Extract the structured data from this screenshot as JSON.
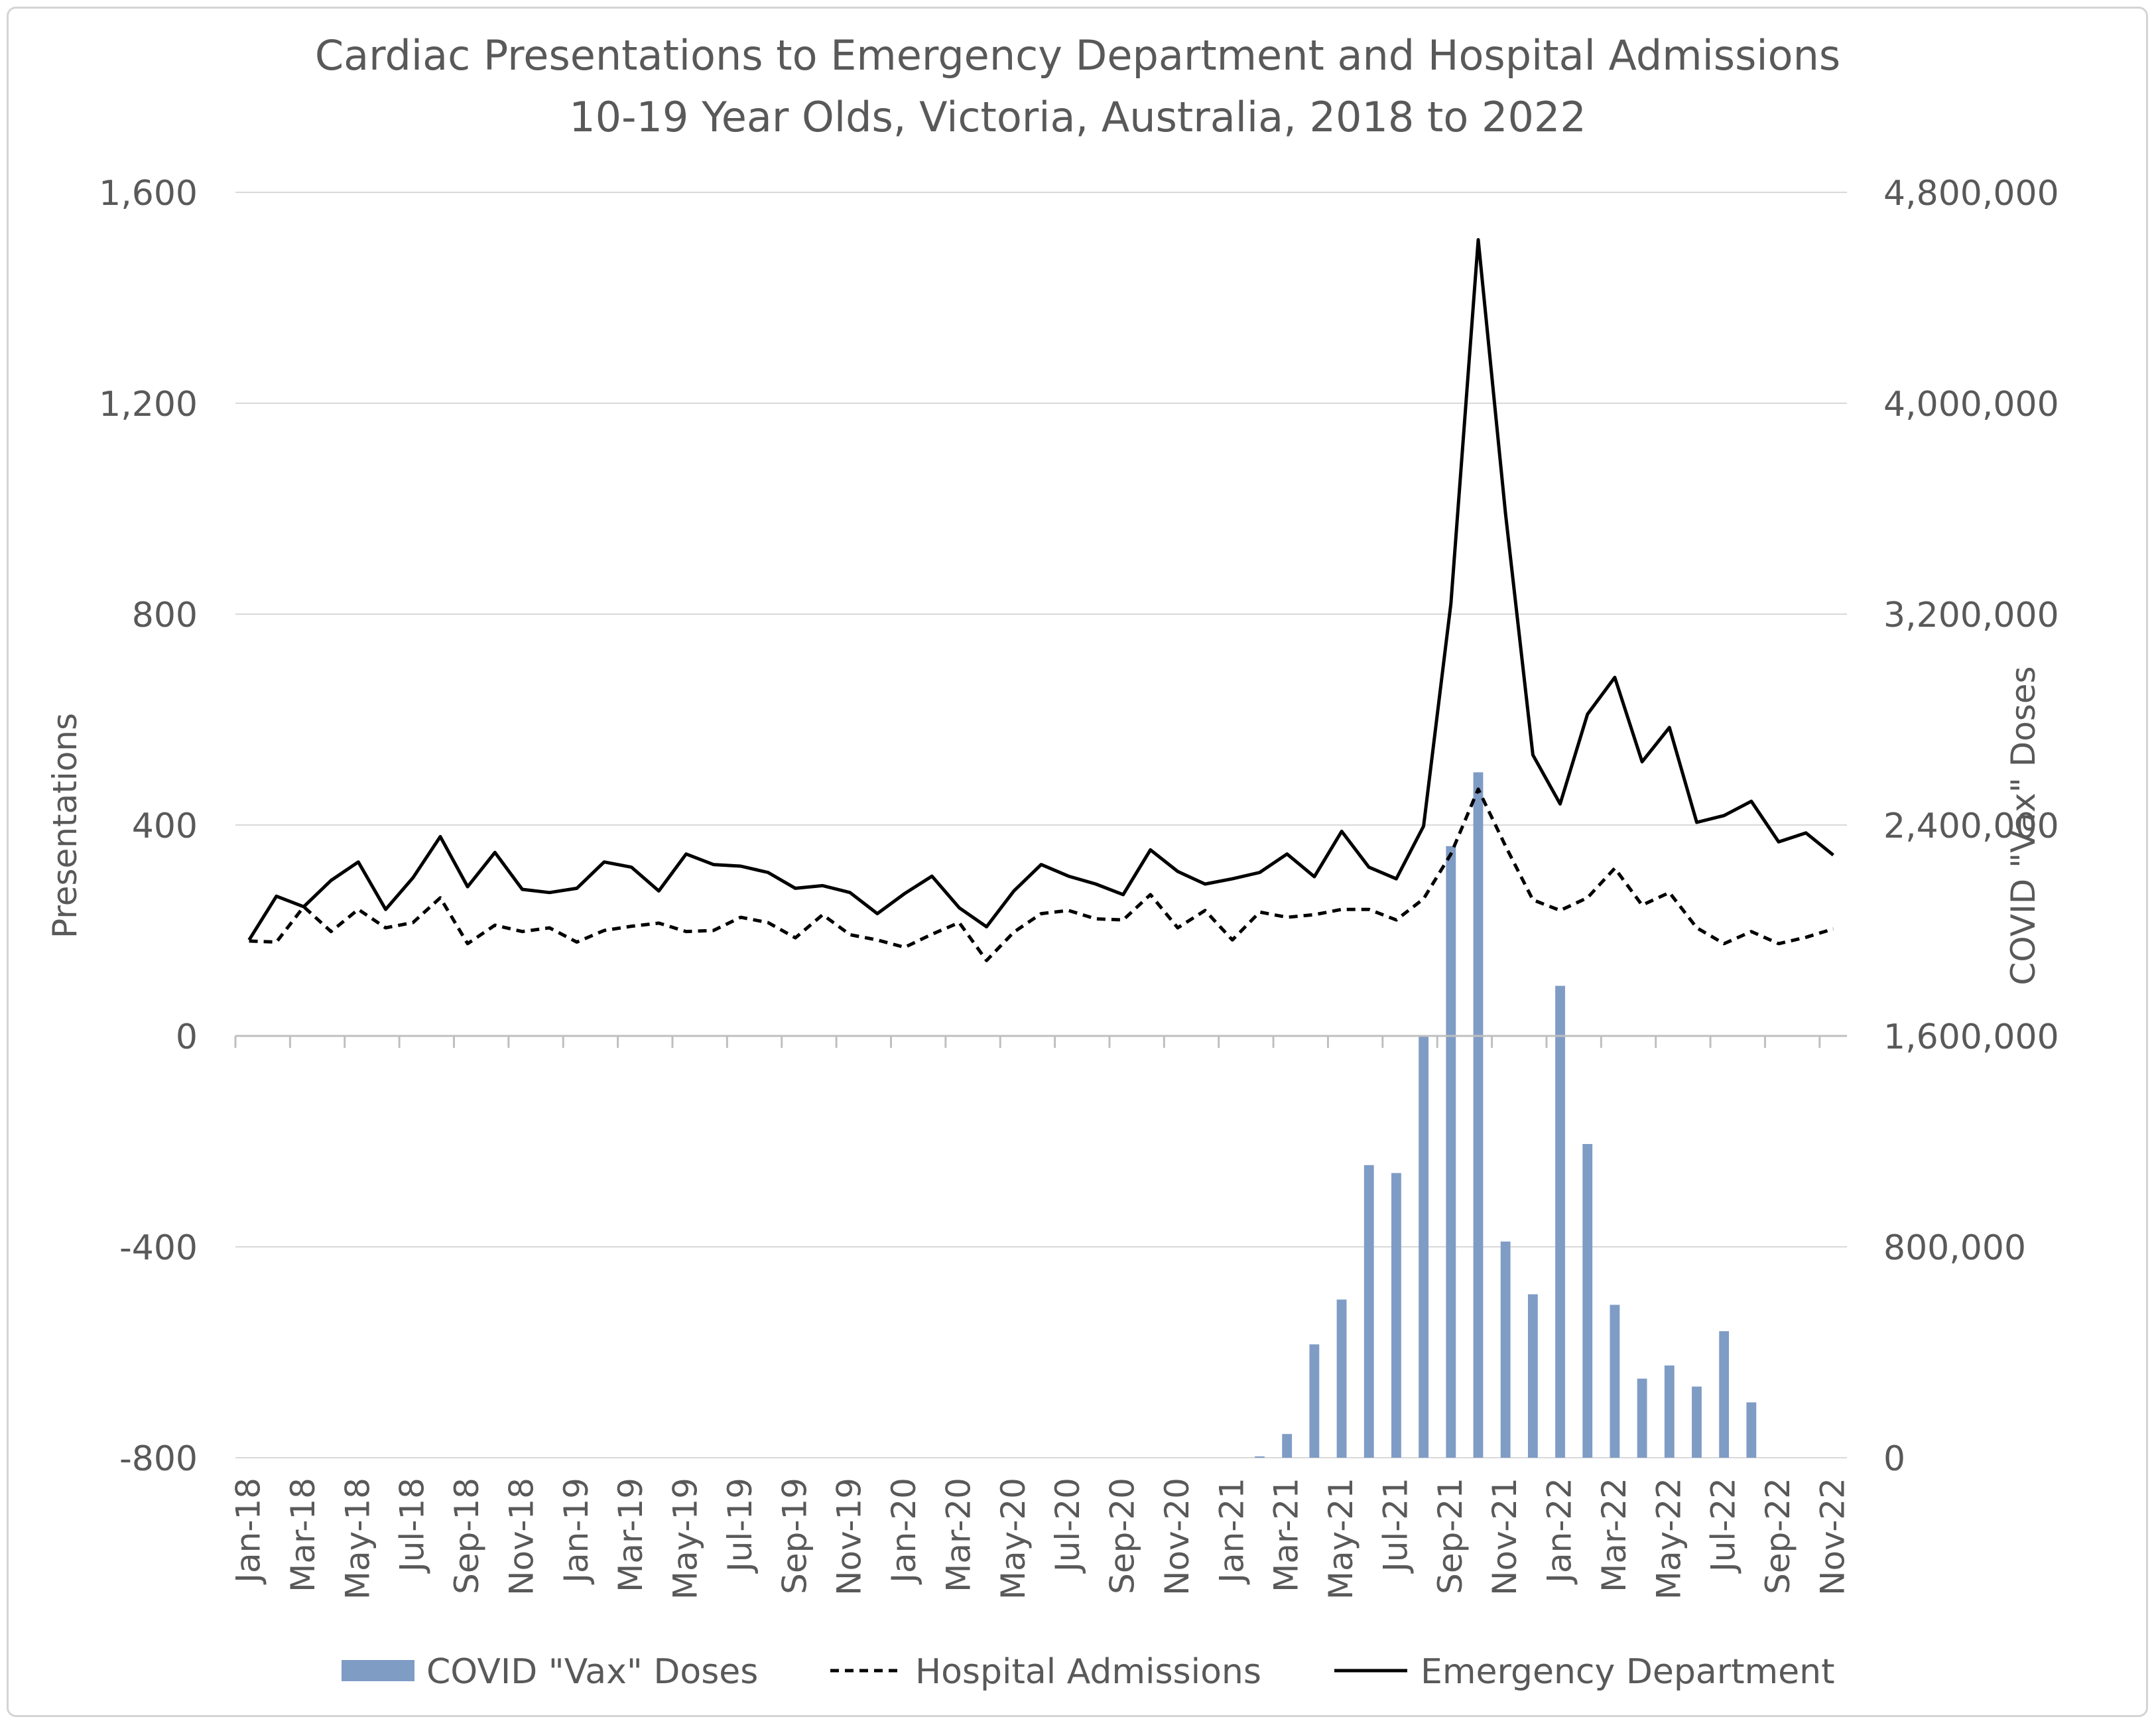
{
  "chart_data": {
    "type": "bar+line",
    "title": "Cardiac Presentations to Emergency Department and Hospital Admissions",
    "subtitle": "10-19 Year Olds, Victoria, Australia, 2018 to 2022",
    "ylabel": "Presentations",
    "y2label": "COVID \"Vax\" Doses",
    "ylim": [
      -800,
      1600
    ],
    "y2lim": [
      0,
      4800000
    ],
    "yticks": [
      "1,600",
      "1,200",
      "800",
      "400",
      "0",
      "-400",
      "-800"
    ],
    "y2ticks": [
      "4,800,000",
      "4,000,000",
      "3,200,000",
      "2,400,000",
      "1,600,000",
      "800,000",
      "0"
    ],
    "grid": true,
    "legend_position": "bottom",
    "colors": {
      "bars": "#7f9cc5",
      "lines": "#000000",
      "grid": "#d9d9d9",
      "text": "#595959"
    },
    "x_labels": [
      "Jan-18",
      "Mar-18",
      "May-18",
      "Jul-18",
      "Sep-18",
      "Nov-18",
      "Jan-19",
      "Mar-19",
      "May-19",
      "Jul-19",
      "Sep-19",
      "Nov-19",
      "Jan-20",
      "Mar-20",
      "May-20",
      "Jul-20",
      "Sep-20",
      "Nov-20",
      "Jan-21",
      "Mar-21",
      "May-21",
      "Jul-21",
      "Sep-21",
      "Nov-21",
      "Jan-22",
      "Mar-22",
      "May-22",
      "Jul-22",
      "Sep-22",
      "Nov-22"
    ],
    "months": [
      "Jan-18",
      "Feb-18",
      "Mar-18",
      "Apr-18",
      "May-18",
      "Jun-18",
      "Jul-18",
      "Aug-18",
      "Sep-18",
      "Oct-18",
      "Nov-18",
      "Dec-18",
      "Jan-19",
      "Feb-19",
      "Mar-19",
      "Apr-19",
      "May-19",
      "Jun-19",
      "Jul-19",
      "Aug-19",
      "Sep-19",
      "Oct-19",
      "Nov-19",
      "Dec-19",
      "Jan-20",
      "Feb-20",
      "Mar-20",
      "Apr-20",
      "May-20",
      "Jun-20",
      "Jul-20",
      "Aug-20",
      "Sep-20",
      "Oct-20",
      "Nov-20",
      "Dec-20",
      "Jan-21",
      "Feb-21",
      "Mar-21",
      "Apr-21",
      "May-21",
      "Jun-21",
      "Jul-21",
      "Aug-21",
      "Sep-21",
      "Oct-21",
      "Nov-21",
      "Dec-21",
      "Jan-22",
      "Feb-22",
      "Mar-22",
      "Apr-22",
      "May-22",
      "Jun-22",
      "Jul-22",
      "Aug-22",
      "Sep-22",
      "Oct-22",
      "Nov-22"
    ],
    "series": [
      {
        "name": "COVID \"Vax\" Doses",
        "type": "bar",
        "axis": "right",
        "style": "solid-bar",
        "values": [
          0,
          0,
          0,
          0,
          0,
          0,
          0,
          0,
          0,
          0,
          0,
          0,
          0,
          0,
          0,
          0,
          0,
          0,
          0,
          0,
          0,
          0,
          0,
          0,
          0,
          0,
          0,
          0,
          0,
          0,
          0,
          0,
          0,
          0,
          0,
          0,
          0,
          5000,
          90000,
          430000,
          600000,
          1110000,
          1080000,
          1600000,
          2320000,
          2600000,
          820000,
          620000,
          1790000,
          1190000,
          580000,
          300000,
          350000,
          270000,
          480000,
          210000,
          0,
          0,
          0
        ]
      },
      {
        "name": "Hospital Admissions",
        "type": "line",
        "axis": "left",
        "style": "dashed",
        "values": [
          180,
          178,
          245,
          198,
          240,
          205,
          215,
          262,
          175,
          210,
          198,
          205,
          178,
          200,
          208,
          214,
          198,
          200,
          225,
          215,
          186,
          230,
          192,
          182,
          168,
          193,
          215,
          143,
          197,
          232,
          238,
          222,
          220,
          268,
          205,
          238,
          182,
          235,
          225,
          230,
          240,
          240,
          220,
          260,
          345,
          468,
          360,
          258,
          238,
          262,
          318,
          248,
          272,
          205,
          175,
          198,
          175,
          187,
          203
        ]
      },
      {
        "name": "Emergency Department",
        "type": "line",
        "axis": "left",
        "style": "solid",
        "values": [
          182,
          265,
          245,
          295,
          330,
          240,
          300,
          378,
          283,
          348,
          278,
          272,
          280,
          330,
          320,
          275,
          345,
          325,
          322,
          310,
          280,
          285,
          272,
          232,
          270,
          303,
          243,
          207,
          275,
          325,
          303,
          288,
          268,
          353,
          312,
          288,
          298,
          310,
          345,
          302,
          388,
          320,
          298,
          398,
          820,
          1510,
          990,
          533,
          440,
          610,
          680,
          520,
          585,
          405,
          418,
          445,
          368,
          385,
          343
        ]
      }
    ]
  }
}
